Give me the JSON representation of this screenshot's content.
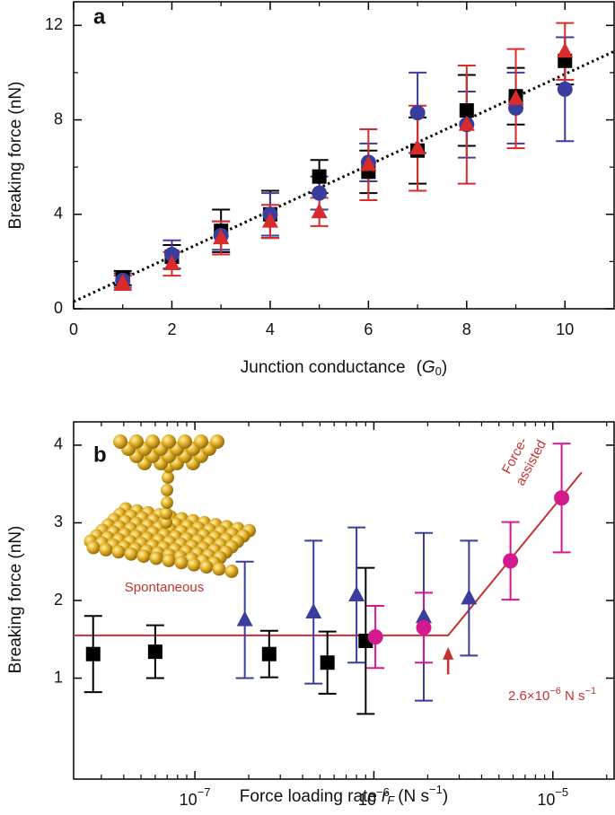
{
  "chart_data": [
    {
      "type": "scatter",
      "panel_label": "a",
      "y_label": "Breaking force (nN)",
      "x_label": {
        "text": "Junction conductance",
        "open": "(",
        "symbol": "G",
        "subscript": "0",
        "close": ")"
      },
      "xlim": [
        0,
        11
      ],
      "ylim": [
        0,
        13
      ],
      "xticks": [
        0,
        2,
        4,
        6,
        8,
        10
      ],
      "yticks": [
        0,
        4,
        8,
        12
      ],
      "xticks_minor": [
        1,
        3,
        5,
        7,
        9
      ],
      "yticks_minor": [
        2,
        6,
        10
      ],
      "x": [
        1,
        2,
        3,
        4,
        5,
        6,
        7,
        8,
        9,
        10
      ],
      "series": [
        {
          "marker": "square",
          "color": "#000000",
          "values": [
            1.3,
            2.2,
            3.3,
            4.0,
            5.6,
            5.8,
            6.7,
            8.4,
            9.0,
            10.5
          ],
          "errors": [
            0.3,
            0.5,
            0.9,
            1.0,
            0.7,
            0.9,
            1.4,
            1.5,
            1.2,
            1.0
          ]
        },
        {
          "marker": "circle",
          "color": "#3a3d9e",
          "values": [
            1.2,
            2.3,
            3.1,
            4.0,
            4.9,
            6.2,
            8.3,
            7.8,
            8.5,
            9.3
          ],
          "errors": [
            0.3,
            0.6,
            0.6,
            0.9,
            0.7,
            0.8,
            1.7,
            1.4,
            1.5,
            2.2
          ]
        },
        {
          "marker": "triangle",
          "color": "#d92b2b",
          "values": [
            1.1,
            1.9,
            3.0,
            3.7,
            4.1,
            6.1,
            6.8,
            7.8,
            8.9,
            10.9
          ],
          "errors": [
            0.3,
            0.5,
            0.7,
            0.7,
            0.6,
            1.5,
            1.8,
            2.5,
            2.1,
            1.2
          ]
        }
      ],
      "fit": {
        "color": "#000000",
        "x": [
          0,
          11
        ],
        "values": [
          0.3,
          10.9
        ]
      }
    },
    {
      "type": "scatter",
      "panel_label": "b",
      "log_x": true,
      "xminor": true,
      "y_label": "Breaking force (nN)",
      "x_label": {
        "text": "Force loading rate",
        "symbol": "r",
        "subscript": "F",
        "unit": "(N s",
        "unit_exponent": "−1",
        "close": ")"
      },
      "xlim": [
        2.1e-08,
        2.2e-05
      ],
      "ylim": [
        -0.3,
        4.3
      ],
      "xticks": [
        {
          "value": 1e-07,
          "label": "10",
          "exponent": "−7"
        },
        {
          "value": 1e-06,
          "label": "10",
          "exponent": "−6"
        },
        {
          "value": 1e-05,
          "label": "10",
          "exponent": "−5"
        }
      ],
      "yticks": [
        1,
        2,
        3,
        4
      ],
      "series": [
        {
          "marker": "square",
          "color": "#000000",
          "err_color": "#000000",
          "x": [
            2.7e-08,
            6e-08,
            2.6e-07,
            5.5e-07,
            9e-07
          ],
          "values": [
            1.31,
            1.34,
            1.31,
            1.2,
            1.48
          ],
          "errors": [
            0.49,
            0.34,
            0.3,
            0.4,
            0.94
          ]
        },
        {
          "marker": "triangle",
          "color": "#3a3d9e",
          "err_color": "#3a3d9e",
          "x": [
            1.9e-07,
            4.6e-07,
            8e-07,
            1.9e-06,
            3.4e-06
          ],
          "values": [
            1.75,
            1.85,
            2.07,
            1.79,
            2.03
          ],
          "errors": [
            0.75,
            0.92,
            0.87,
            1.08,
            0.74
          ]
        },
        {
          "marker": "circle",
          "color": "#d4198f",
          "err_color": "#d4198f",
          "x": [
            1.02e-06,
            1.9e-06,
            5.8e-06,
            1.12e-05
          ],
          "values": [
            1.53,
            1.65,
            2.51,
            3.32
          ],
          "errors": [
            0.4,
            0.45,
            0.5,
            0.7
          ]
        }
      ],
      "fit": {
        "color": "#c83232",
        "x": [
          2.1e-08,
          2.6e-06,
          1.45e-05
        ],
        "values": [
          1.55,
          1.55,
          3.65
        ]
      },
      "arrow": {
        "x": 2.6e-06,
        "values": [
          1.05,
          1.4
        ]
      },
      "annotations": {
        "force_1": "Force-",
        "force_2": "assisted",
        "spontaneous": "Spontaneous",
        "rate": [
          {
            "text": "2.6×10",
            "sup": false
          },
          {
            "text": "−6",
            "sup": true
          },
          {
            "text": " N s",
            "sup": false
          },
          {
            "text": "−1",
            "sup": true
          }
        ]
      }
    }
  ]
}
